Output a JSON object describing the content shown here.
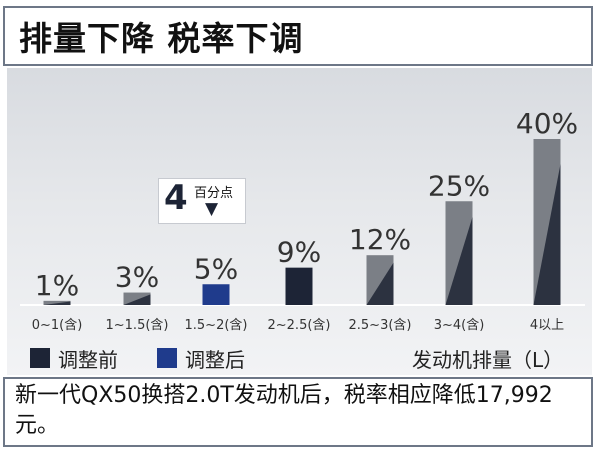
{
  "header": {
    "title": "排量下降  税率下调"
  },
  "callout": {
    "number": "4",
    "text": "百分点",
    "arrow": "down-arrow-icon"
  },
  "legend": {
    "items": [
      {
        "label": "调整前",
        "color": "#1d2436"
      },
      {
        "label": "调整后",
        "color": "#1f3b8c"
      }
    ],
    "unit": "发动机排量（L）"
  },
  "caption": {
    "text": "新一代QX50换搭2.0T发动机后，税率相应降低17,992元。"
  },
  "colors": {
    "gray_bar": "#7b7f86",
    "dark_bar": "#1d2436",
    "blue_bar": "#1f3b8c",
    "panel_top": "#d8dbe0"
  },
  "chart_data": {
    "type": "bar",
    "title": "排量下降  税率下调",
    "xlabel": "发动机排量（L）",
    "categories": [
      "0~1(含)",
      "1~1.5(含)",
      "1.5~2(含)",
      "2~2.5(含)",
      "2.5~3(含)",
      "3~4(含)",
      "4以上"
    ],
    "values": [
      1,
      3,
      5,
      9,
      12,
      25,
      40
    ],
    "value_labels": [
      "1%",
      "3%",
      "5%",
      "9%",
      "12%",
      "25%",
      "40%"
    ],
    "bar_styles": [
      "gray",
      "gray",
      "blue",
      "dark",
      "gray",
      "gray",
      "gray"
    ],
    "ylim": [
      0,
      40
    ],
    "legend_position": "bottom-left"
  }
}
